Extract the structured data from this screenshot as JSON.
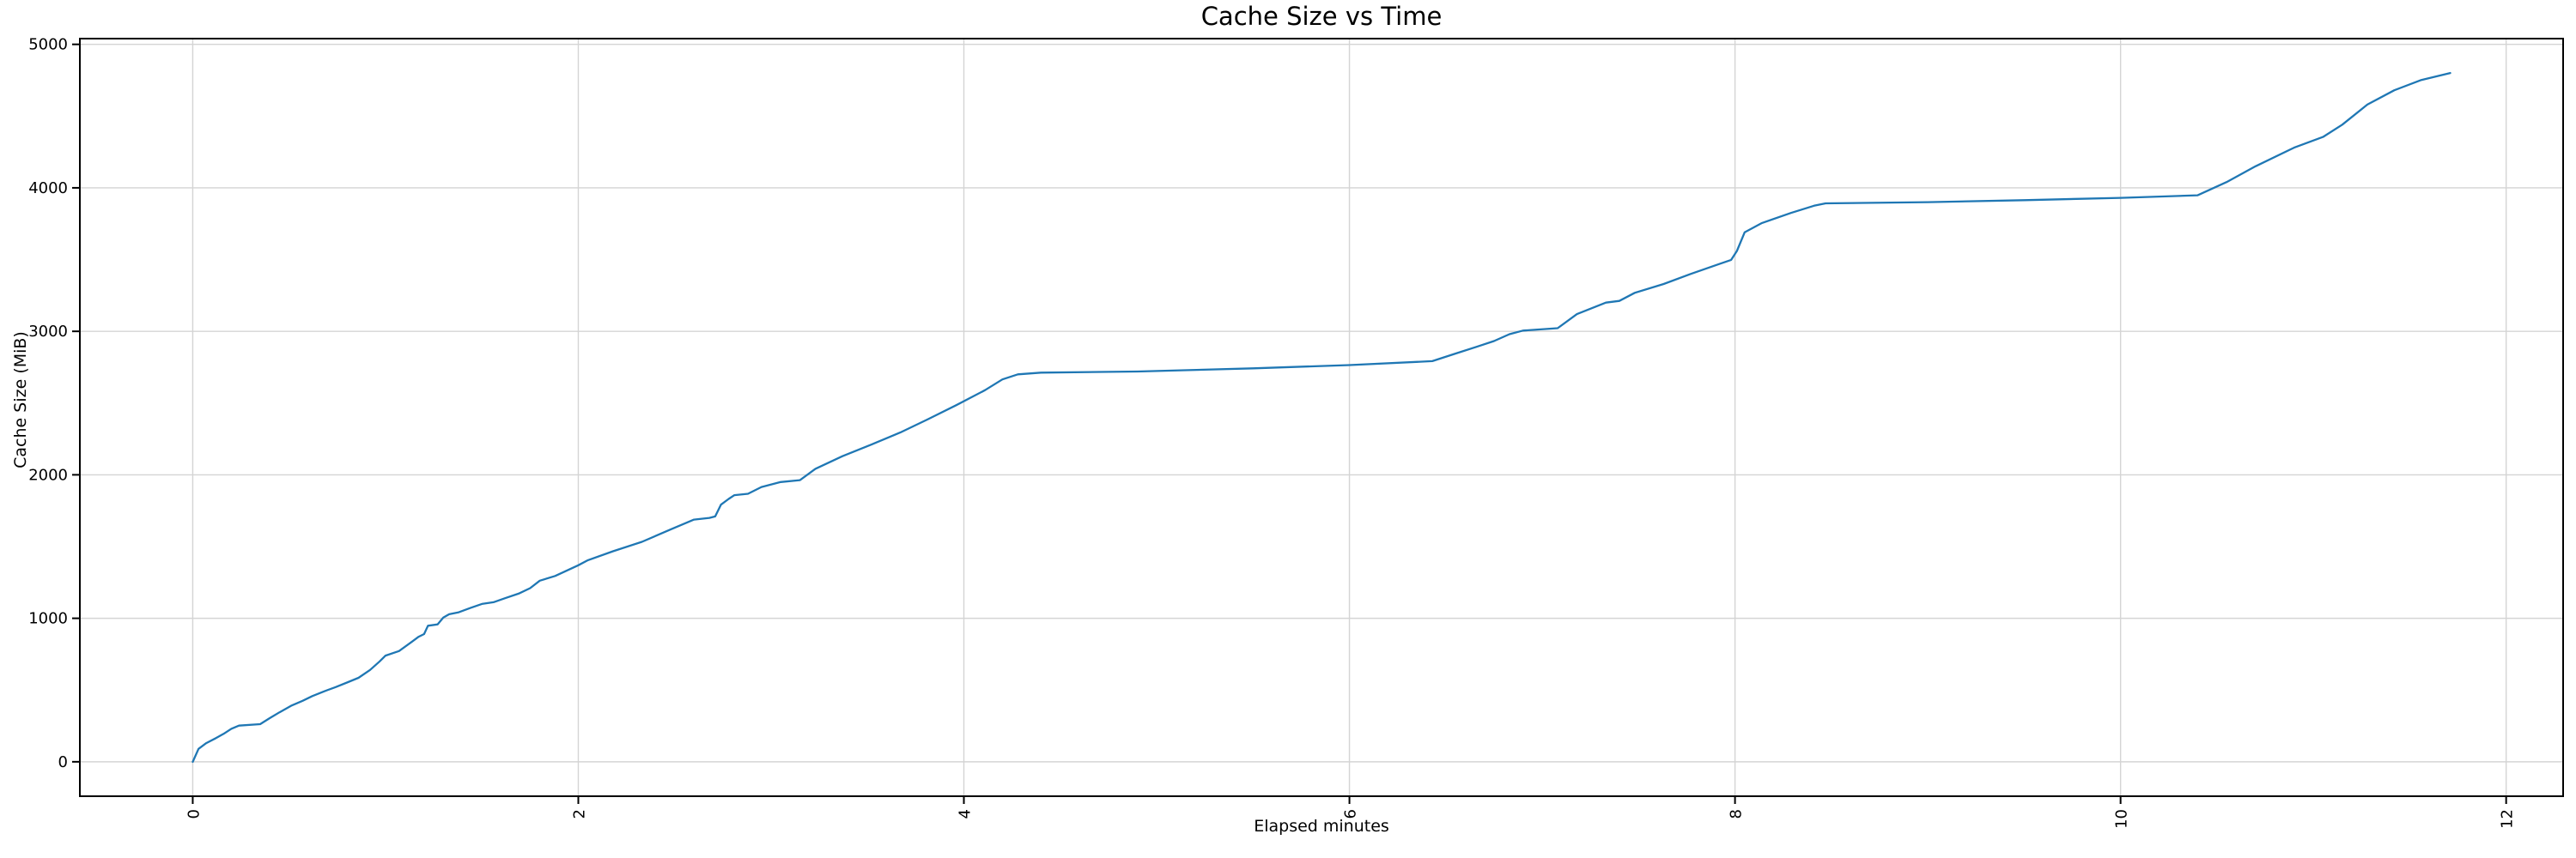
{
  "chart_data": {
    "type": "line",
    "title": "Cache Size vs Time",
    "xlabel": "Elapsed minutes",
    "ylabel": "Cache Size (MiB)",
    "x_ticks": [
      0,
      2,
      4,
      6,
      8,
      10,
      12
    ],
    "x_tick_labels": [
      "0",
      "2",
      "4",
      "6",
      "8",
      "10",
      "12"
    ],
    "x_tick_rotation_deg": 90,
    "y_ticks": [
      0,
      1000,
      2000,
      3000,
      4000,
      5000
    ],
    "y_tick_labels": [
      "0",
      "1000",
      "2000",
      "3000",
      "4000",
      "5000"
    ],
    "xlim": [
      -0.5855,
      12.2955
    ],
    "ylim": [
      -240,
      5040
    ],
    "grid": true,
    "legend_position": "none",
    "line_color": "#1f77b4",
    "grid_color": "#d4d4d4",
    "frame_color": "#000000",
    "tick_label_color": "#000000",
    "series": [
      {
        "name": "cache_size_mib",
        "points": [
          [
            0.0,
            0
          ],
          [
            0.03,
            90
          ],
          [
            0.07,
            130
          ],
          [
            0.12,
            165
          ],
          [
            0.16,
            195
          ],
          [
            0.2,
            230
          ],
          [
            0.24,
            252
          ],
          [
            0.35,
            262
          ],
          [
            0.4,
            305
          ],
          [
            0.45,
            345
          ],
          [
            0.51,
            390
          ],
          [
            0.57,
            425
          ],
          [
            0.62,
            458
          ],
          [
            0.68,
            490
          ],
          [
            0.74,
            520
          ],
          [
            0.8,
            552
          ],
          [
            0.86,
            585
          ],
          [
            0.92,
            640
          ],
          [
            0.97,
            700
          ],
          [
            1.0,
            740
          ],
          [
            1.07,
            772
          ],
          [
            1.14,
            840
          ],
          [
            1.17,
            870
          ],
          [
            1.2,
            890
          ],
          [
            1.22,
            948
          ],
          [
            1.27,
            958
          ],
          [
            1.3,
            1005
          ],
          [
            1.33,
            1028
          ],
          [
            1.38,
            1042
          ],
          [
            1.44,
            1072
          ],
          [
            1.5,
            1100
          ],
          [
            1.56,
            1112
          ],
          [
            1.62,
            1140
          ],
          [
            1.69,
            1172
          ],
          [
            1.75,
            1210
          ],
          [
            1.8,
            1262
          ],
          [
            1.88,
            1295
          ],
          [
            2.0,
            1370
          ],
          [
            2.05,
            1405
          ],
          [
            2.18,
            1467
          ],
          [
            2.33,
            1533
          ],
          [
            2.48,
            1620
          ],
          [
            2.6,
            1688
          ],
          [
            2.68,
            1700
          ],
          [
            2.71,
            1710
          ],
          [
            2.74,
            1792
          ],
          [
            2.78,
            1832
          ],
          [
            2.81,
            1858
          ],
          [
            2.88,
            1868
          ],
          [
            2.95,
            1915
          ],
          [
            3.05,
            1950
          ],
          [
            3.15,
            1963
          ],
          [
            3.23,
            2042
          ],
          [
            3.37,
            2130
          ],
          [
            3.51,
            2205
          ],
          [
            3.67,
            2295
          ],
          [
            3.81,
            2385
          ],
          [
            3.96,
            2485
          ],
          [
            4.11,
            2590
          ],
          [
            4.2,
            2665
          ],
          [
            4.28,
            2700
          ],
          [
            4.4,
            2712
          ],
          [
            4.9,
            2720
          ],
          [
            5.5,
            2742
          ],
          [
            6.0,
            2765
          ],
          [
            6.43,
            2792
          ],
          [
            6.55,
            2845
          ],
          [
            6.66,
            2892
          ],
          [
            6.75,
            2932
          ],
          [
            6.83,
            2980
          ],
          [
            6.9,
            3005
          ],
          [
            7.08,
            3022
          ],
          [
            7.18,
            3120
          ],
          [
            7.33,
            3200
          ],
          [
            7.4,
            3212
          ],
          [
            7.48,
            3268
          ],
          [
            7.63,
            3330
          ],
          [
            7.77,
            3400
          ],
          [
            7.92,
            3470
          ],
          [
            7.98,
            3498
          ],
          [
            8.01,
            3560
          ],
          [
            8.05,
            3690
          ],
          [
            8.14,
            3755
          ],
          [
            8.29,
            3825
          ],
          [
            8.41,
            3875
          ],
          [
            8.47,
            3892
          ],
          [
            9.0,
            3900
          ],
          [
            9.5,
            3914
          ],
          [
            10.0,
            3930
          ],
          [
            10.4,
            3948
          ],
          [
            10.55,
            4040
          ],
          [
            10.7,
            4150
          ],
          [
            10.9,
            4280
          ],
          [
            11.05,
            4355
          ],
          [
            11.15,
            4440
          ],
          [
            11.28,
            4580
          ],
          [
            11.42,
            4680
          ],
          [
            11.56,
            4752
          ],
          [
            11.71,
            4800
          ]
        ]
      }
    ]
  }
}
